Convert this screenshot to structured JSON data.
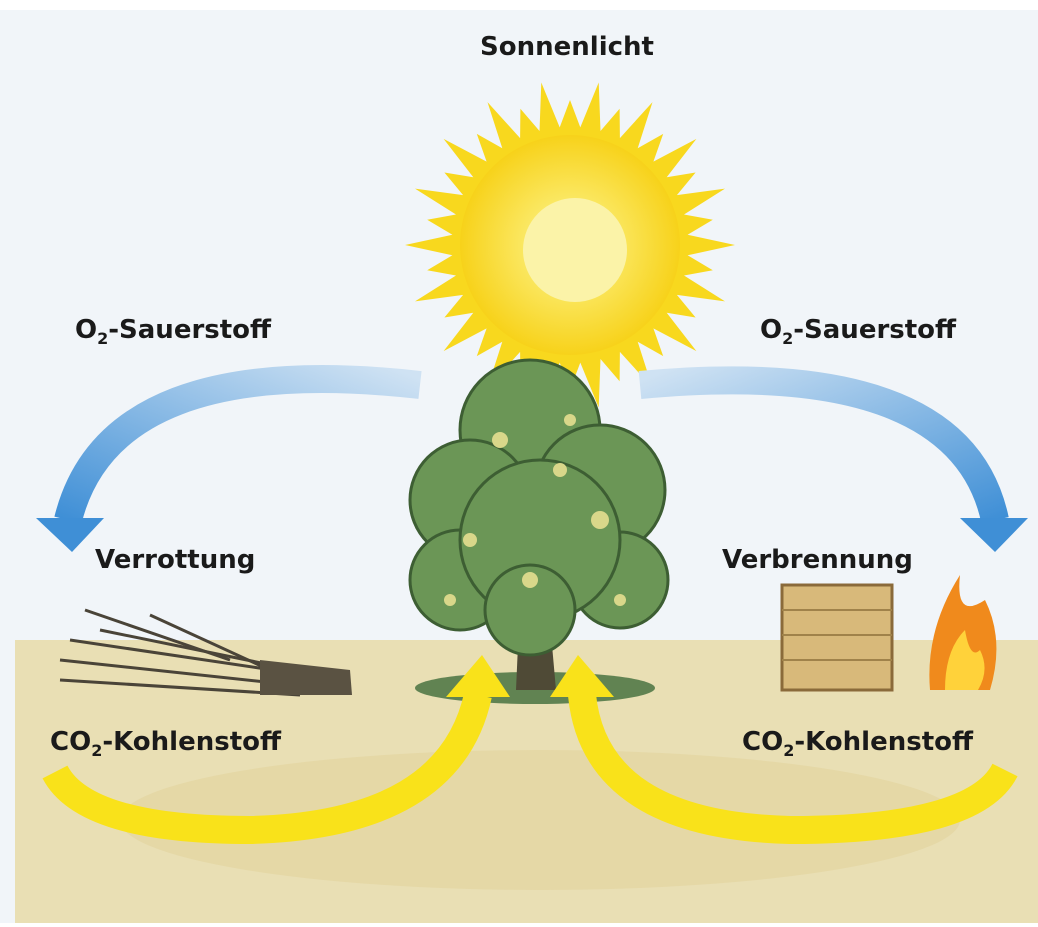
{
  "title": "Sonnenlicht",
  "left": {
    "oxygen": {
      "base": "O",
      "sub": "2",
      "rest": "-Sauerstoff"
    },
    "process": "Verrottung",
    "carbon": {
      "base": "CO",
      "sub": "2",
      "rest": "-Kohlenstoff"
    }
  },
  "right": {
    "oxygen": {
      "base": "O",
      "sub": "2",
      "rest": "-Sauerstoff"
    },
    "process": "Verbrennung",
    "carbon": {
      "base": "CO",
      "sub": "2",
      "rest": "-Kohlenstoff"
    }
  }
}
